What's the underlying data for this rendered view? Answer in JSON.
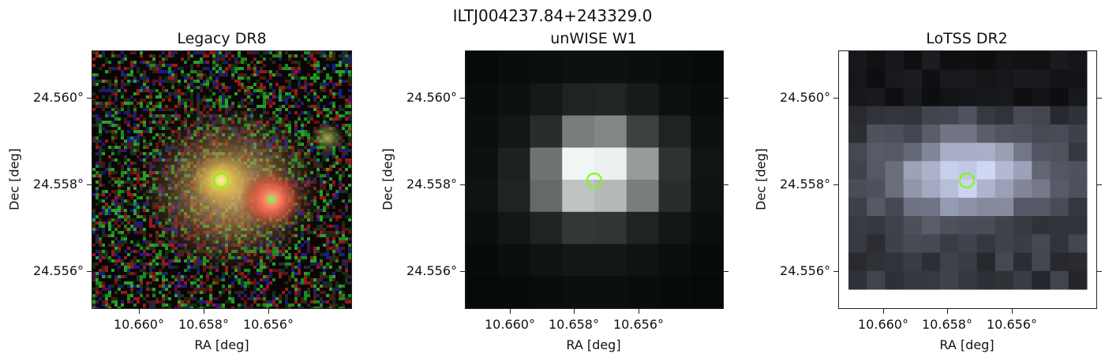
{
  "figure": {
    "suptitle": "ILTJ004237.84+243329.0"
  },
  "panels": [
    {
      "title": "Legacy DR8",
      "xlabel": "RA [deg]",
      "ylabel": "Dec [deg]",
      "xticks": [
        "10.660°",
        "10.658°",
        "10.656°"
      ],
      "yticks": [
        "24.560°",
        "24.558°",
        "24.556°"
      ]
    },
    {
      "title": "unWISE W1",
      "xlabel": "RA [deg]",
      "ylabel": "Dec [deg]",
      "xticks": [
        "10.660°",
        "10.658°",
        "10.656°"
      ],
      "yticks": [
        "24.560°",
        "24.558°",
        "24.556°"
      ]
    },
    {
      "title": "LoTSS DR2",
      "xlabel": "RA [deg]",
      "ylabel": "Dec [deg]",
      "xticks": [
        "10.660°",
        "10.658°",
        "10.656°"
      ],
      "yticks": [
        "24.560°",
        "24.558°",
        "24.556°"
      ]
    }
  ],
  "colors": {
    "marker": "#7cfc00",
    "frame": "#222222"
  }
}
